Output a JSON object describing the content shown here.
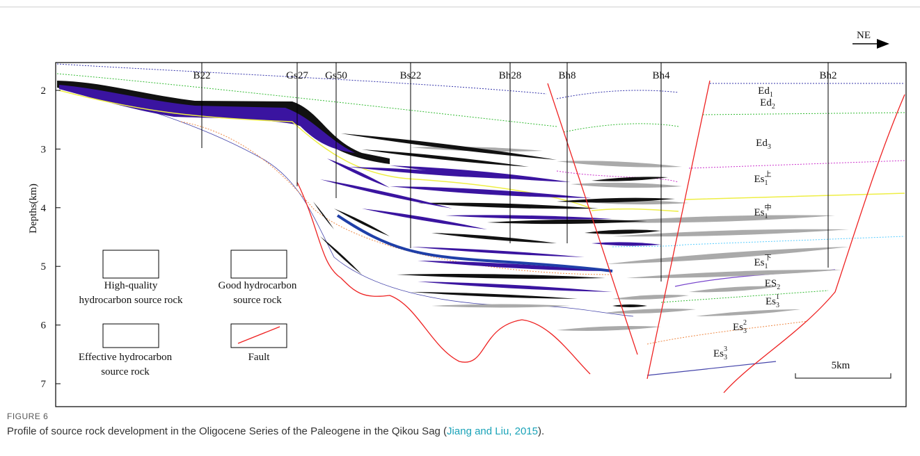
{
  "figure": {
    "ne_label": "NE",
    "y_axis": {
      "label": "Depths(km)",
      "ticks": [
        2,
        3,
        4,
        5,
        6,
        7
      ]
    },
    "wells": [
      "B22",
      "Gs27",
      "Gs50",
      "Bs22",
      "Bh28",
      "Bh8",
      "Bh4",
      "Bh2"
    ],
    "formations": [
      {
        "base": "Ed",
        "sub": "1"
      },
      {
        "base": "Ed",
        "sub": "2"
      },
      {
        "base": "Ed",
        "sub": "3"
      },
      {
        "base": "Es",
        "sub": "1",
        "sup": "上"
      },
      {
        "base": "Es",
        "sub": "1",
        "sup": "中"
      },
      {
        "base": "Es",
        "sub": "1",
        "sup": "下"
      },
      {
        "base": "ES",
        "sub": "2"
      },
      {
        "base": "Es",
        "sub": "3",
        "sup": "1"
      },
      {
        "base": "Es",
        "sub": "3",
        "sup": "2"
      },
      {
        "base": "Es",
        "sub": "3",
        "sup": "3"
      }
    ],
    "legend": [
      {
        "lines": [
          "High-quality",
          "hydrocarbon source rock"
        ]
      },
      {
        "lines": [
          "Good hydrocarbon",
          "source rock"
        ]
      },
      {
        "lines": [
          "Effective hydrocarbon",
          "source rock"
        ]
      },
      {
        "lines": [
          "Fault"
        ]
      }
    ],
    "scale_bar": "5km"
  },
  "caption": {
    "label": "FIGURE 6",
    "text_before": "Profile of source rock development in the Oligocene Series of the Paleogene in the Qikou Sag (",
    "citation": "Jiang and Liu, 2015",
    "text_after": ")."
  }
}
